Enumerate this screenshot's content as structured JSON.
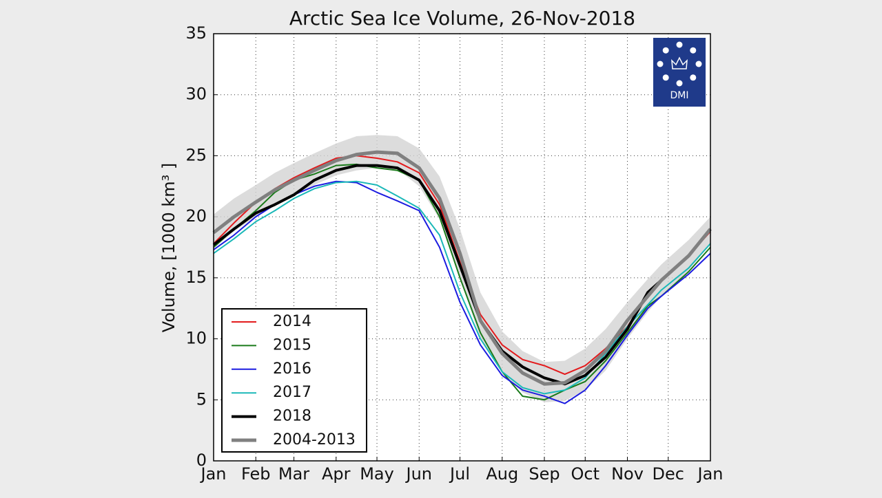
{
  "chart_data": {
    "type": "line",
    "title": "Arctic Sea Ice Volume, 26-Nov-2018",
    "y_label": "Volume, [1000 km³ ]",
    "logo": "DMI",
    "x": [
      0,
      15,
      31,
      45,
      59,
      74,
      90,
      105,
      120,
      135,
      151,
      166,
      181,
      196,
      212,
      227,
      243,
      258,
      273,
      288,
      304,
      319,
      329,
      349,
      365
    ],
    "xlim": [
      0,
      365
    ],
    "xticks": [
      {
        "value": 0,
        "label": "Jan"
      },
      {
        "value": 31,
        "label": "Feb"
      },
      {
        "value": 59,
        "label": "Mar"
      },
      {
        "value": 90,
        "label": "Apr"
      },
      {
        "value": 120,
        "label": "May"
      },
      {
        "value": 151,
        "label": "Jun"
      },
      {
        "value": 181,
        "label": "Jul"
      },
      {
        "value": 212,
        "label": "Aug"
      },
      {
        "value": 243,
        "label": "Sep"
      },
      {
        "value": 273,
        "label": "Oct"
      },
      {
        "value": 304,
        "label": "Nov"
      },
      {
        "value": 334,
        "label": "Dec"
      },
      {
        "value": 365,
        "label": "Jan"
      }
    ],
    "ylim": [
      0,
      35
    ],
    "yticks": [
      0,
      5,
      10,
      15,
      20,
      25,
      30,
      35
    ],
    "grid": true,
    "legend": "lower left",
    "band": {
      "color": "#d3d3d3",
      "upper": [
        20.2,
        21.5,
        22.6,
        23.6,
        24.4,
        25.2,
        26.0,
        26.6,
        26.7,
        26.6,
        25.6,
        23.3,
        19.0,
        13.8,
        10.6,
        9.0,
        8.1,
        8.2,
        9.2,
        10.8,
        13.0,
        14.9,
        16.1,
        18.1,
        20.0
      ],
      "lower": [
        17.4,
        18.8,
        20.0,
        21.0,
        21.8,
        22.6,
        23.4,
        23.8,
        24.0,
        23.9,
        22.5,
        19.8,
        15.0,
        10.0,
        7.2,
        5.6,
        4.8,
        4.9,
        5.8,
        7.4,
        10.0,
        12.2,
        13.5,
        15.6,
        17.8
      ]
    },
    "series": [
      {
        "name": "2014",
        "color": "#e31a1c",
        "width": 2,
        "values": [
          17.8,
          19.5,
          21.2,
          22.3,
          23.2,
          24.0,
          24.8,
          25.0,
          24.8,
          24.5,
          23.6,
          21.0,
          16.3,
          12.0,
          9.5,
          8.3,
          7.8,
          7.1,
          7.8,
          9.2,
          11.0,
          13.5,
          14.8,
          16.8,
          18.8
        ]
      },
      {
        "name": "2015",
        "color": "#1a7a1a",
        "width": 2,
        "values": [
          17.5,
          19.0,
          20.5,
          22.0,
          23.0,
          23.5,
          24.2,
          24.3,
          24.0,
          23.8,
          23.0,
          20.0,
          15.0,
          10.5,
          7.3,
          5.3,
          5.0,
          5.8,
          6.5,
          8.2,
          10.5,
          12.7,
          13.5,
          15.5,
          17.5
        ]
      },
      {
        "name": "2016",
        "color": "#1c1ce0",
        "width": 2,
        "values": [
          17.3,
          18.5,
          20.0,
          21.0,
          21.8,
          22.5,
          22.9,
          22.8,
          22.0,
          21.3,
          20.5,
          17.5,
          13.0,
          9.5,
          7.0,
          5.8,
          5.3,
          4.7,
          5.8,
          7.8,
          10.3,
          12.5,
          13.5,
          15.3,
          17.0
        ]
      },
      {
        "name": "2017",
        "color": "#1ab8b8",
        "width": 2,
        "values": [
          17.0,
          18.2,
          19.6,
          20.5,
          21.5,
          22.3,
          22.8,
          22.9,
          22.6,
          21.7,
          20.7,
          18.5,
          13.8,
          10.0,
          7.3,
          6.0,
          5.5,
          5.8,
          6.8,
          8.8,
          11.0,
          12.8,
          14.0,
          15.8,
          17.8
        ]
      },
      {
        "name": "2018",
        "color": "#000000",
        "width": 4,
        "values": [
          17.7,
          19.0,
          20.3,
          21.0,
          21.8,
          23.0,
          23.8,
          24.2,
          24.2,
          24.0,
          23.0,
          20.5,
          16.0,
          11.5,
          9.0,
          7.7,
          6.8,
          6.3,
          7.0,
          8.5,
          10.8,
          13.8,
          14.8,
          null,
          null
        ]
      },
      {
        "name": "2004-2013",
        "color": "#808080",
        "width": 5,
        "values": [
          18.7,
          20.0,
          21.2,
          22.2,
          23.0,
          23.8,
          24.6,
          25.1,
          25.3,
          25.2,
          24.0,
          21.5,
          17.0,
          11.5,
          8.8,
          7.2,
          6.3,
          6.4,
          7.4,
          9.0,
          11.5,
          13.5,
          14.8,
          16.8,
          19.0
        ]
      }
    ]
  }
}
